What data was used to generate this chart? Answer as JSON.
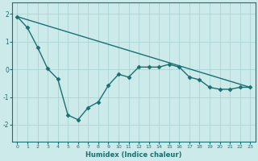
{
  "xlabel": "Humidex (Indice chaleur)",
  "background_color": "#cceaea",
  "line_color": "#1a7070",
  "grid_color": "#aad4d4",
  "xlim": [
    -0.5,
    23.5
  ],
  "ylim": [
    -2.6,
    2.4
  ],
  "yticks": [
    -2,
    -1,
    0,
    1,
    2
  ],
  "xticks": [
    0,
    1,
    2,
    3,
    4,
    5,
    6,
    7,
    8,
    9,
    10,
    11,
    12,
    13,
    14,
    15,
    16,
    17,
    18,
    19,
    20,
    21,
    22,
    23
  ],
  "line1_x": [
    0,
    1,
    2,
    3,
    4,
    5,
    6,
    7,
    8,
    9,
    10,
    11,
    12,
    13,
    14,
    15,
    16,
    17,
    18,
    19,
    20,
    21,
    22,
    23
  ],
  "line1_y": [
    1.9,
    1.5,
    0.8,
    0.02,
    -0.35,
    -1.65,
    -1.82,
    -1.38,
    -1.18,
    -0.58,
    -0.18,
    -0.28,
    0.08,
    0.08,
    0.08,
    0.18,
    0.08,
    -0.28,
    -0.38,
    -0.65,
    -0.72,
    -0.72,
    -0.65,
    -0.65
  ],
  "line2_x": [
    0,
    23
  ],
  "line2_y": [
    1.9,
    -0.65
  ],
  "marker": "D",
  "markersize": 2.5,
  "linewidth": 1.0
}
